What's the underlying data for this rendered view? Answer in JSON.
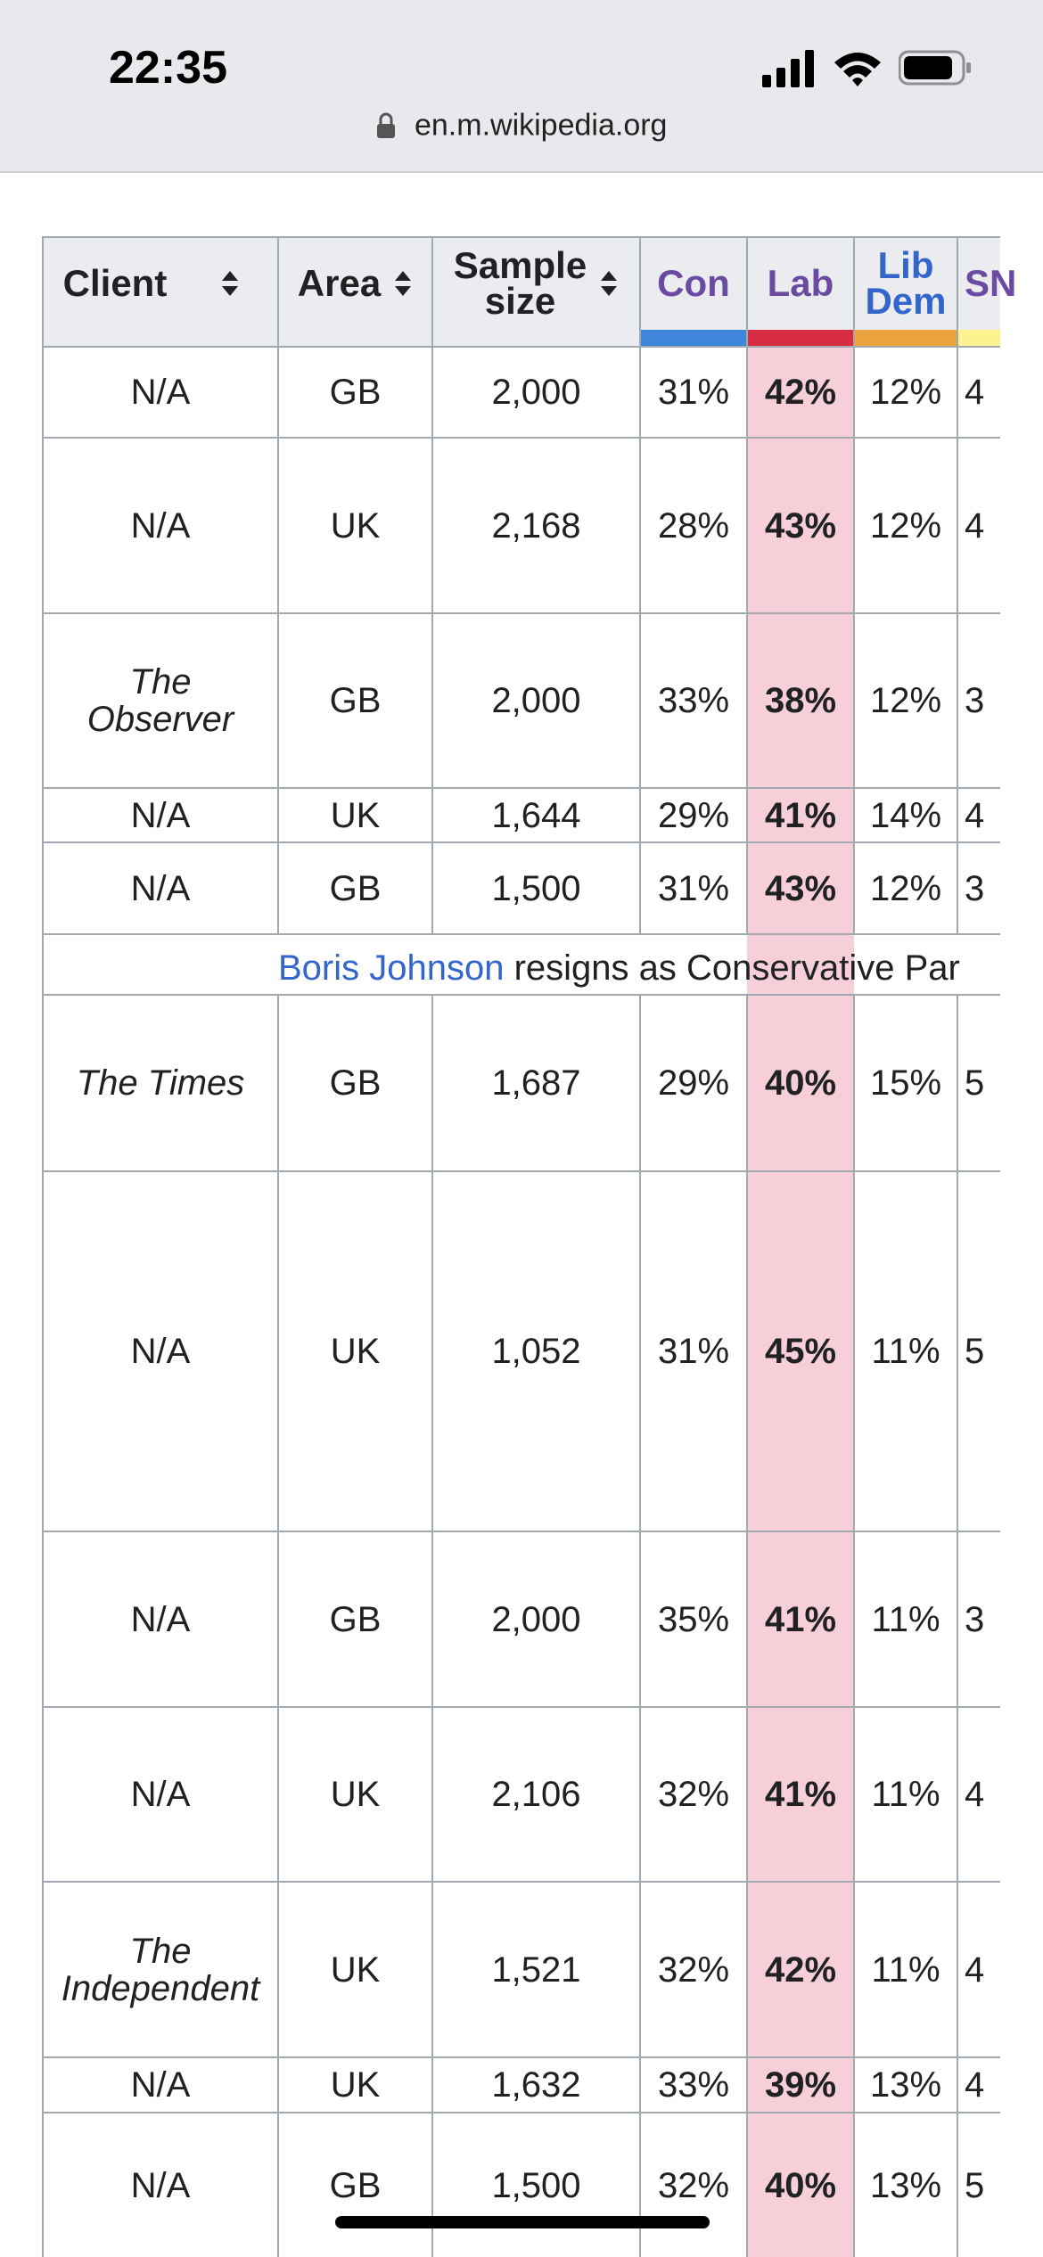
{
  "status_bar": {
    "time": "22:35"
  },
  "browser": {
    "url": "en.m.wikipedia.org"
  },
  "table": {
    "headers": {
      "client": "Client",
      "area": "Area",
      "sample_size_line1": "Sample",
      "sample_size_line2": "size",
      "con": "Con",
      "lab": "Lab",
      "libdem_line1": "Lib",
      "libdem_line2": "Dem",
      "snp": "SN"
    },
    "party_colors": {
      "con": "#3d86d9",
      "lab": "#d72c41",
      "libdem": "#eda33d",
      "snp": "#fdf38e"
    },
    "rows": [
      {
        "client": "N/A",
        "area": "GB",
        "sample": "2,000",
        "con": "31%",
        "lab": "42%",
        "libdem": "12%",
        "snp": "4"
      },
      {
        "client": "N/A",
        "area": "UK",
        "sample": "2,168",
        "con": "28%",
        "lab": "43%",
        "libdem": "12%",
        "snp": "4"
      },
      {
        "client_line1": "The",
        "client_line2": "Observer",
        "area": "GB",
        "sample": "2,000",
        "con": "33%",
        "lab": "38%",
        "libdem": "12%",
        "snp": "3"
      },
      {
        "client": "N/A",
        "area": "UK",
        "sample": "1,644",
        "con": "29%",
        "lab": "41%",
        "libdem": "14%",
        "snp": "4"
      },
      {
        "client": "N/A",
        "area": "GB",
        "sample": "1,500",
        "con": "31%",
        "lab": "43%",
        "libdem": "12%",
        "snp": "3"
      },
      {
        "client": "The Times",
        "area": "GB",
        "sample": "1,687",
        "con": "29%",
        "lab": "40%",
        "libdem": "15%",
        "snp": "5"
      },
      {
        "client": "N/A",
        "area": "UK",
        "sample": "1,052",
        "con": "31%",
        "lab": "45%",
        "libdem": "11%",
        "snp": "5"
      },
      {
        "client": "N/A",
        "area": "GB",
        "sample": "2,000",
        "con": "35%",
        "lab": "41%",
        "libdem": "11%",
        "snp": "3"
      },
      {
        "client": "N/A",
        "area": "UK",
        "sample": "2,106",
        "con": "32%",
        "lab": "41%",
        "libdem": "11%",
        "snp": "4"
      },
      {
        "client_line1": "The",
        "client_line2": "Independent",
        "area": "UK",
        "sample": "1,521",
        "con": "32%",
        "lab": "42%",
        "libdem": "11%",
        "snp": "4"
      },
      {
        "client": "N/A",
        "area": "UK",
        "sample": "1,632",
        "con": "33%",
        "lab": "39%",
        "libdem": "13%",
        "snp": "4"
      },
      {
        "client": "N/A",
        "area": "GB",
        "sample": "1,500",
        "con": "32%",
        "lab": "40%",
        "libdem": "13%",
        "snp": "5"
      }
    ],
    "event": {
      "link_text": "Boris Johnson",
      "text": " resigns as Conservative Par"
    }
  }
}
